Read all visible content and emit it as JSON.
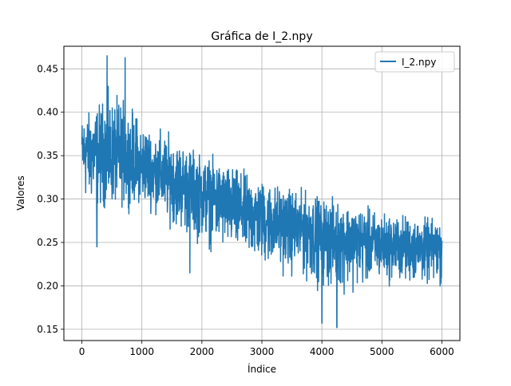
{
  "chart_data": {
    "type": "line",
    "title": "Gráfica de I_2.npy",
    "xlabel": "Índice",
    "ylabel": "Valores",
    "xlim": [
      -300,
      6300
    ],
    "ylim": [
      0.137,
      0.476
    ],
    "x_ticks": [
      0,
      1000,
      2000,
      3000,
      4000,
      5000,
      6000
    ],
    "y_ticks": [
      0.15,
      0.2,
      0.25,
      0.3,
      0.35,
      0.4,
      0.45
    ],
    "x_tick_labels": [
      "0",
      "1000",
      "2000",
      "3000",
      "4000",
      "5000",
      "6000"
    ],
    "y_tick_labels": [
      "0.15",
      "0.20",
      "0.25",
      "0.30",
      "0.35",
      "0.40",
      "0.45"
    ],
    "grid": true,
    "legend_position": "top-right",
    "series": [
      {
        "name": "I_2.npy",
        "color": "#1f77b4",
        "x_start": 0,
        "x_end": 6000,
        "trend": [
          [
            0,
            0.36
          ],
          [
            1000,
            0.335
          ],
          [
            2000,
            0.31
          ],
          [
            3000,
            0.28
          ],
          [
            4000,
            0.262
          ],
          [
            5000,
            0.248
          ],
          [
            6000,
            0.245
          ]
        ],
        "envelope_upper": [
          [
            0,
            0.415
          ],
          [
            400,
            0.465
          ],
          [
            700,
            0.463
          ],
          [
            1000,
            0.43
          ],
          [
            2000,
            0.38
          ],
          [
            3000,
            0.35
          ],
          [
            4000,
            0.33
          ],
          [
            5000,
            0.31
          ],
          [
            6000,
            0.295
          ]
        ],
        "envelope_lower": [
          [
            0,
            0.255
          ],
          [
            250,
            0.245
          ],
          [
            1000,
            0.27
          ],
          [
            1800,
            0.215
          ],
          [
            2600,
            0.19
          ],
          [
            3400,
            0.178
          ],
          [
            4000,
            0.157
          ],
          [
            4250,
            0.152
          ],
          [
            5000,
            0.175
          ],
          [
            6000,
            0.17
          ]
        ],
        "spikes": [
          [
            420,
            0.465
          ],
          [
            720,
            0.463
          ],
          [
            250,
            0.245
          ],
          [
            1800,
            0.215
          ],
          [
            4000,
            0.157
          ],
          [
            4250,
            0.152
          ]
        ]
      }
    ]
  }
}
